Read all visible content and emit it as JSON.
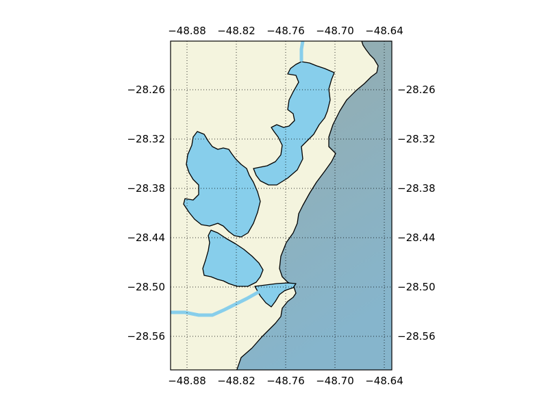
{
  "map": {
    "colors": {
      "land": "#f4f4de",
      "water": "#87ceeb",
      "ocean_top": "#96abab",
      "ocean_bottom": "#86b5cc",
      "river": "#87ceeb",
      "coastline": "#000000"
    },
    "x_ticks": [
      "−48.88",
      "−48.82",
      "−48.76",
      "−48.70",
      "−48.64"
    ],
    "y_ticks": [
      "−28.26",
      "−28.32",
      "−28.38",
      "−28.44",
      "−28.50",
      "−28.56"
    ],
    "gridlines": "dotted",
    "tick_labels_on": [
      "top",
      "bottom",
      "left",
      "right"
    ]
  }
}
